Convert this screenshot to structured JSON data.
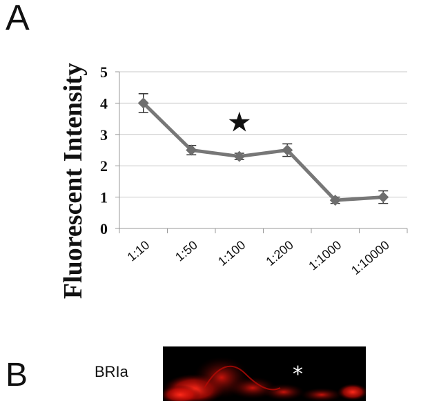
{
  "panel_a": {
    "label": "A"
  },
  "panel_b": {
    "label": "B",
    "tag": "BRIa",
    "marker": "*"
  },
  "chart_data": {
    "type": "line",
    "title": "",
    "xlabel": "",
    "ylabel": "Fluorescent Intensity",
    "categories": [
      "1:10",
      "1:50",
      "1:100",
      "1:200",
      "1:1000",
      "1:10000"
    ],
    "series": [
      {
        "values": [
          4.0,
          2.5,
          2.3,
          2.5,
          0.9,
          1.0
        ],
        "errors": [
          0.3,
          0.15,
          0.1,
          0.2,
          0.1,
          0.2
        ]
      }
    ],
    "y_ticks": [
      "0",
      "1",
      "2",
      "3",
      "4",
      "5"
    ],
    "ylim": [
      0,
      5
    ],
    "grid": true,
    "annotation": {
      "symbol": "★",
      "x_category": "1:100",
      "y": 3.4
    },
    "colors": {
      "line": "#777777",
      "marker": "#6e6e6e",
      "grid": "#c8c8c8",
      "axis": "#999999"
    }
  }
}
